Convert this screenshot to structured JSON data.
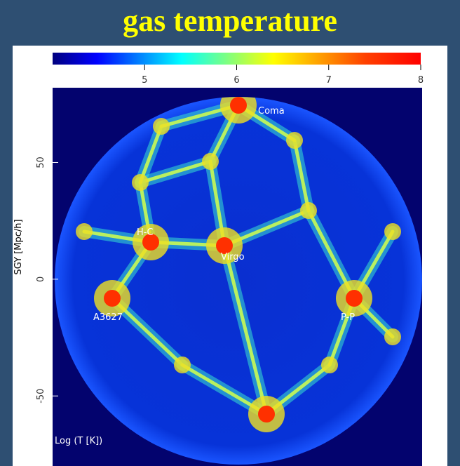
{
  "title": "gas temperature",
  "colorbar": {
    "lim": [
      4,
      8
    ],
    "ticks": [
      5,
      6,
      7,
      8
    ]
  },
  "map": {
    "y_label": "SGY [Mpc/h]",
    "ylim": [
      -80,
      82
    ],
    "yticks": [
      -50,
      0,
      50
    ],
    "corner_label": "Log (T [K])",
    "annotations": [
      "Coma",
      "H-C",
      "Virgo",
      "A3627",
      "P-P"
    ]
  }
}
